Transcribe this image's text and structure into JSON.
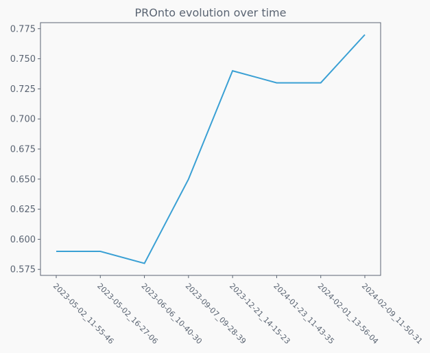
{
  "chart_data": {
    "type": "line",
    "title": "PROnto evolution over time",
    "xlabel": "",
    "ylabel": "",
    "categories": [
      "2023-05-02_11-55-46",
      "2023-05-02_16-27-06",
      "2023-06-06_10-40-30",
      "2023-09-07_09-28-39",
      "2023-12-21_14-15-23",
      "2024-01-23_11-43-35",
      "2024-02-01_13-56-04",
      "2024-02-09_11-50-31"
    ],
    "series": [
      {
        "values": [
          0.59,
          0.59,
          0.58,
          0.65,
          0.74,
          0.73,
          0.73,
          0.77
        ],
        "color": "#3aa0d4"
      }
    ],
    "ylim": [
      0.57,
      0.78
    ],
    "yticks": [
      0.575,
      0.6,
      0.625,
      0.65,
      0.675,
      0.7,
      0.725,
      0.75,
      0.775
    ],
    "ytick_labels": [
      "0.575",
      "0.600",
      "0.625",
      "0.650",
      "0.675",
      "0.700",
      "0.725",
      "0.750",
      "0.775"
    ],
    "grid": false,
    "legend": "none",
    "axis_color": "#5a6472",
    "background": "#f9f9f9"
  }
}
